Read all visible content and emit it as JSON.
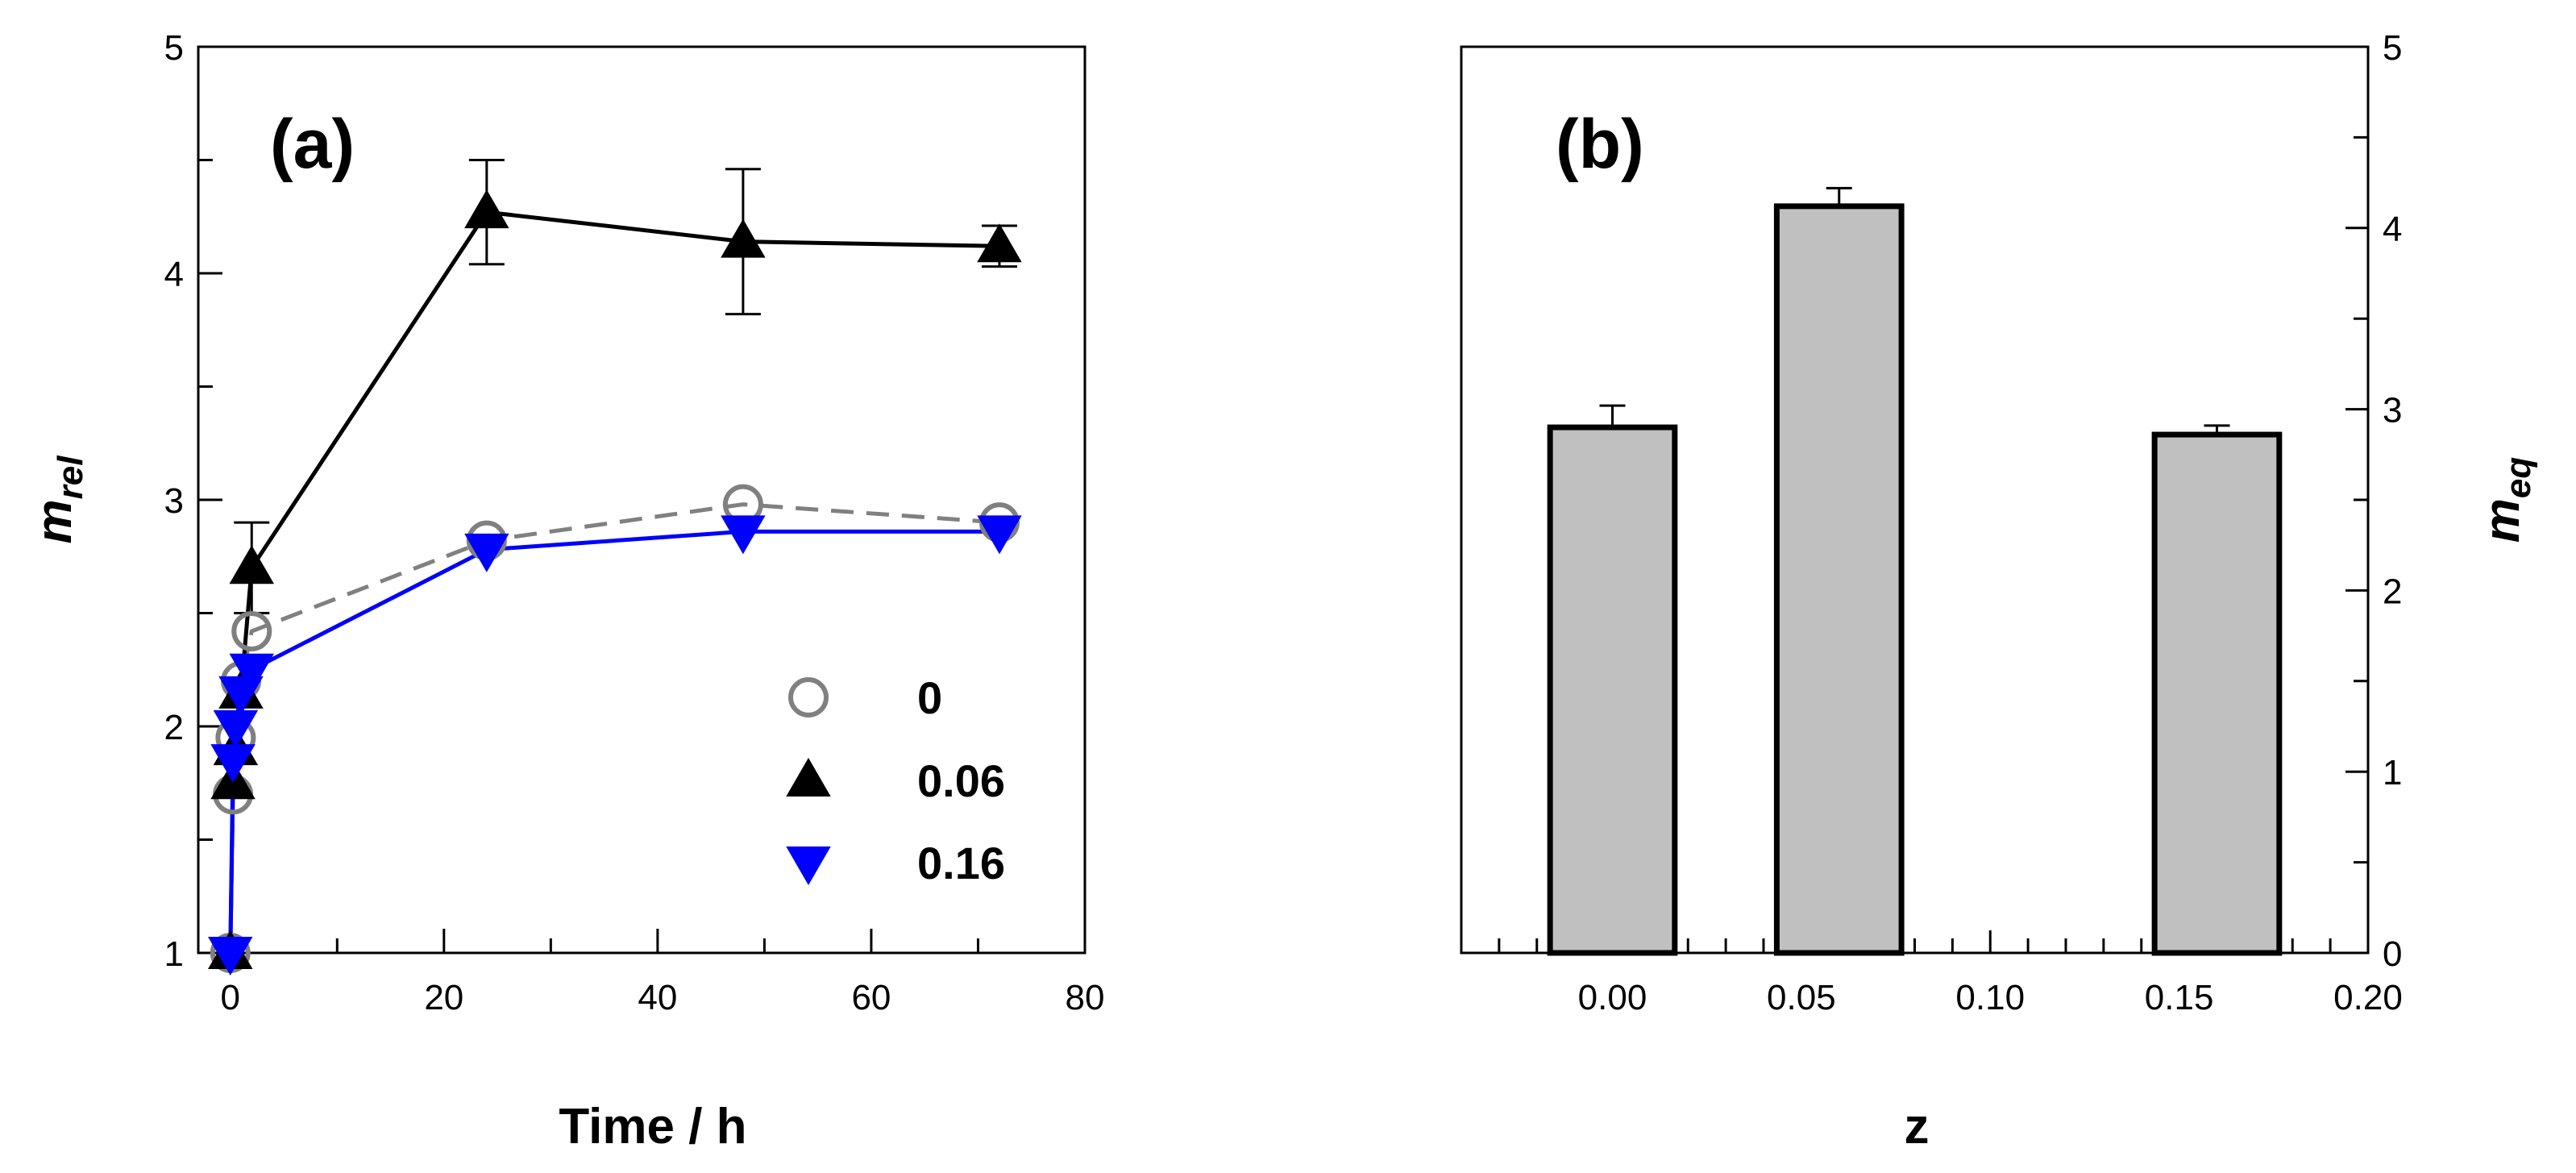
{
  "chart_data": [
    {
      "type": "line",
      "panel_label": "(a)",
      "xlabel": "Time / h",
      "ylabel": {
        "main": "m",
        "sub": "rel"
      },
      "xlim": [
        -3,
        80
      ],
      "ylim": [
        1,
        5
      ],
      "xticks": [
        0,
        20,
        40,
        60,
        80
      ],
      "yticks": [
        1,
        2,
        3,
        4,
        5
      ],
      "xtick_labels": [
        "0",
        "20",
        "40",
        "60",
        "80"
      ],
      "ytick_labels": [
        "1",
        "2",
        "3",
        "4",
        "5"
      ],
      "legend_position": "lower-right",
      "series": [
        {
          "name": "0",
          "marker": "open-circle",
          "color": "#808080",
          "line_style": "dashed",
          "x": [
            0,
            0.25,
            0.5,
            1,
            2,
            24,
            48,
            72
          ],
          "y": [
            1.0,
            1.7,
            1.95,
            2.2,
            2.42,
            2.82,
            2.98,
            2.9
          ]
        },
        {
          "name": "0.06",
          "marker": "filled-triangle-up",
          "color": "#000000",
          "line_style": "solid",
          "x": [
            0,
            0.25,
            0.5,
            1,
            2,
            24,
            48,
            72
          ],
          "y": [
            1.0,
            1.75,
            1.9,
            2.15,
            2.7,
            4.27,
            4.14,
            4.12
          ],
          "error": [
            0,
            0,
            0,
            0,
            0.2,
            0.23,
            0.32,
            0.09
          ]
        },
        {
          "name": "0.16",
          "marker": "filled-triangle-down",
          "color": "#0000FF",
          "line_style": "solid",
          "x": [
            0,
            0.25,
            0.5,
            1,
            2,
            24,
            48,
            72
          ],
          "y": [
            1.0,
            1.85,
            2.0,
            2.15,
            2.25,
            2.78,
            2.86,
            2.86
          ]
        }
      ]
    },
    {
      "type": "bar",
      "panel_label": "(b)",
      "xlabel": "z",
      "ylabel": {
        "main": "m",
        "sub": "eq"
      },
      "xlim": [
        -0.04,
        0.2
      ],
      "ylim": [
        0,
        5
      ],
      "xticks": [
        0.0,
        0.05,
        0.1,
        0.15,
        0.2
      ],
      "xtick_labels": [
        "0.00",
        "0.05",
        "0.10",
        "0.15",
        "0.20"
      ],
      "yticks": [
        0,
        1,
        2,
        3,
        4,
        5
      ],
      "ytick_labels": [
        "0",
        "1",
        "2",
        "3",
        "4",
        "5"
      ],
      "bar_color": "#C0C0C0",
      "bar_width": 0.03,
      "bars": [
        {
          "x": 0.0,
          "value": 2.9,
          "error": 0.12
        },
        {
          "x": 0.06,
          "value": 4.12,
          "error": 0.1
        },
        {
          "x": 0.16,
          "value": 2.86,
          "error": 0.05
        }
      ]
    }
  ]
}
